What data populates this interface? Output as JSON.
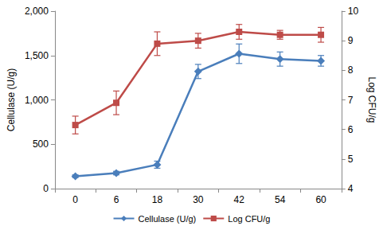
{
  "chart_data": {
    "type": "line",
    "categories": [
      "0",
      "6",
      "18",
      "30",
      "42",
      "54",
      "60"
    ],
    "ylabel": "Cellulase (U/g)",
    "y2label": "Log CFU/g",
    "ylim": [
      0,
      2000
    ],
    "yticks": [
      0,
      500,
      1000,
      1500,
      2000
    ],
    "y2lim": [
      4,
      10
    ],
    "y2ticks": [
      4,
      5,
      6,
      7,
      8,
      9,
      10
    ],
    "grid": false,
    "legend": "bottom",
    "series": [
      {
        "name": "Cellulase (U/g)",
        "color": "#4a7ebb",
        "marker": "diamond",
        "values": [
          140,
          175,
          270,
          1320,
          1520,
          1460,
          1440
        ],
        "errors": [
          15,
          20,
          40,
          80,
          110,
          80,
          60
        ]
      },
      {
        "name": "Log CFU/g",
        "color": "#be4b48",
        "marker": "square",
        "axis": "y2",
        "values": [
          6.15,
          6.9,
          8.9,
          9.0,
          9.3,
          9.2,
          9.2
        ],
        "errors": [
          0.3,
          0.4,
          0.4,
          0.25,
          0.25,
          0.15,
          0.25
        ]
      }
    ]
  }
}
